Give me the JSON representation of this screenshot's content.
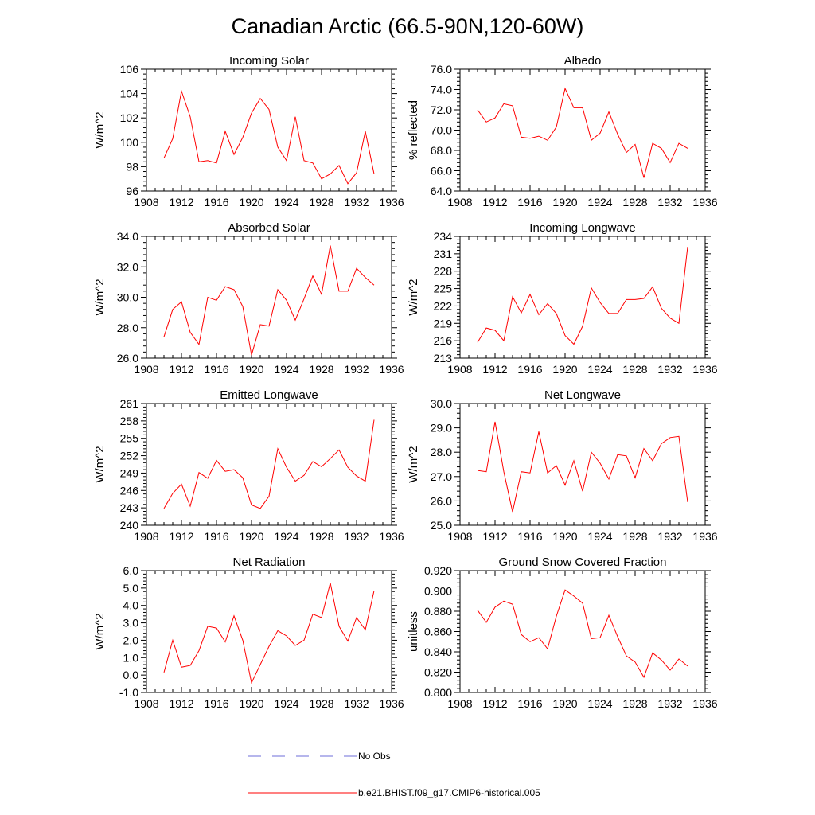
{
  "title": "Canadian Arctic (66.5-90N,120-60W)",
  "legend": [
    {
      "label": "No Obs",
      "color": "#6d6dd8",
      "style": "dashed"
    },
    {
      "label": "b.e21.BHIST.f09_g17.CMIP6-historical.005",
      "color": "#ff0000",
      "style": "solid"
    }
  ],
  "chart_data": [
    {
      "type": "line",
      "title": "Incoming Solar",
      "ylabel": "W/m^2",
      "xlim": [
        1908,
        1936
      ],
      "xticks": [
        1908,
        1912,
        1916,
        1920,
        1924,
        1928,
        1932,
        1936
      ],
      "ylim": [
        96,
        106
      ],
      "yticks": [
        96,
        98,
        100,
        102,
        104,
        106
      ],
      "ytick_labels": [
        "96",
        "98",
        "100",
        "102",
        "104",
        "106"
      ],
      "series": [
        {
          "name": "b.e21.BHIST.f09_g17.CMIP6-historical.005",
          "color": "#ff0000",
          "x": [
            1910,
            1911,
            1912,
            1913,
            1914,
            1915,
            1916,
            1917,
            1918,
            1919,
            1920,
            1921,
            1922,
            1923,
            1924,
            1925,
            1926,
            1927,
            1928,
            1929,
            1930,
            1931,
            1932,
            1933,
            1934
          ],
          "values": [
            98.7,
            100.3,
            104.2,
            102.1,
            98.4,
            98.5,
            98.3,
            100.9,
            99.0,
            100.4,
            102.4,
            103.6,
            102.7,
            99.6,
            98.5,
            102.1,
            98.5,
            98.3,
            97.0,
            97.4,
            98.1,
            96.6,
            97.5,
            100.9,
            97.4
          ]
        }
      ]
    },
    {
      "type": "line",
      "title": "Albedo",
      "ylabel": "% reflected",
      "xlim": [
        1908,
        1936
      ],
      "xticks": [
        1908,
        1912,
        1916,
        1920,
        1924,
        1928,
        1932,
        1936
      ],
      "ylim": [
        64,
        76
      ],
      "yticks": [
        64,
        66,
        68,
        70,
        72,
        74,
        76
      ],
      "ytick_labels": [
        "64.0",
        "66.0",
        "68.0",
        "70.0",
        "72.0",
        "74.0",
        "76.0"
      ],
      "series": [
        {
          "name": "b.e21.BHIST.f09_g17.CMIP6-historical.005",
          "color": "#ff0000",
          "x": [
            1910,
            1911,
            1912,
            1913,
            1914,
            1915,
            1916,
            1917,
            1918,
            1919,
            1920,
            1921,
            1922,
            1923,
            1924,
            1925,
            1926,
            1927,
            1928,
            1929,
            1930,
            1931,
            1932,
            1933,
            1934
          ],
          "values": [
            72.0,
            70.8,
            71.2,
            72.6,
            72.4,
            69.3,
            69.2,
            69.4,
            69.0,
            70.3,
            74.1,
            72.2,
            72.2,
            69.0,
            69.7,
            71.8,
            69.6,
            67.8,
            68.6,
            65.3,
            68.7,
            68.2,
            66.8,
            68.7,
            68.2
          ]
        }
      ]
    },
    {
      "type": "line",
      "title": "Absorbed Solar",
      "ylabel": "W/m^2",
      "xlim": [
        1908,
        1936
      ],
      "xticks": [
        1908,
        1912,
        1916,
        1920,
        1924,
        1928,
        1932,
        1936
      ],
      "ylim": [
        26,
        34
      ],
      "yticks": [
        26,
        28,
        30,
        32,
        34
      ],
      "ytick_labels": [
        "26.0",
        "28.0",
        "30.0",
        "32.0",
        "34.0"
      ],
      "series": [
        {
          "name": "b.e21.BHIST.f09_g17.CMIP6-historical.005",
          "color": "#ff0000",
          "x": [
            1910,
            1911,
            1912,
            1913,
            1914,
            1915,
            1916,
            1917,
            1918,
            1919,
            1920,
            1921,
            1922,
            1923,
            1924,
            1925,
            1926,
            1927,
            1928,
            1929,
            1930,
            1931,
            1932,
            1933,
            1934
          ],
          "values": [
            27.4,
            29.2,
            29.7,
            27.7,
            26.9,
            30.0,
            29.8,
            30.7,
            30.5,
            29.4,
            26.2,
            28.2,
            28.1,
            30.5,
            29.8,
            28.5,
            29.9,
            31.4,
            30.2,
            33.4,
            30.4,
            30.4,
            31.9,
            31.3,
            30.8
          ]
        }
      ]
    },
    {
      "type": "line",
      "title": "Incoming Longwave",
      "ylabel": "W/m^2",
      "xlim": [
        1908,
        1936
      ],
      "xticks": [
        1908,
        1912,
        1916,
        1920,
        1924,
        1928,
        1932,
        1936
      ],
      "ylim": [
        213,
        234
      ],
      "yticks": [
        213,
        216,
        219,
        222,
        225,
        228,
        231,
        234
      ],
      "ytick_labels": [
        "213",
        "216",
        "219",
        "222",
        "225",
        "228",
        "231",
        "234"
      ],
      "series": [
        {
          "name": "b.e21.BHIST.f09_g17.CMIP6-historical.005",
          "color": "#ff0000",
          "x": [
            1910,
            1911,
            1912,
            1913,
            1914,
            1915,
            1916,
            1917,
            1918,
            1919,
            1920,
            1921,
            1922,
            1923,
            1924,
            1925,
            1926,
            1927,
            1928,
            1929,
            1930,
            1931,
            1932,
            1933,
            1934
          ],
          "values": [
            215.7,
            218.2,
            217.8,
            216.0,
            223.6,
            220.8,
            224.0,
            220.5,
            222.4,
            220.7,
            216.9,
            215.4,
            218.5,
            225.1,
            222.6,
            220.7,
            220.7,
            223.1,
            223.1,
            223.3,
            225.3,
            221.6,
            219.9,
            219.0,
            232.2
          ]
        }
      ]
    },
    {
      "type": "line",
      "title": "Emitted Longwave",
      "ylabel": "W/m^2",
      "xlim": [
        1908,
        1936
      ],
      "xticks": [
        1908,
        1912,
        1916,
        1920,
        1924,
        1928,
        1932,
        1936
      ],
      "ylim": [
        240,
        261
      ],
      "yticks": [
        240,
        243,
        246,
        249,
        252,
        255,
        258,
        261
      ],
      "ytick_labels": [
        "240",
        "243",
        "246",
        "249",
        "252",
        "255",
        "258",
        "261"
      ],
      "series": [
        {
          "name": "b.e21.BHIST.f09_g17.CMIP6-historical.005",
          "color": "#ff0000",
          "x": [
            1910,
            1911,
            1912,
            1913,
            1914,
            1915,
            1916,
            1917,
            1918,
            1919,
            1920,
            1921,
            1922,
            1923,
            1924,
            1925,
            1926,
            1927,
            1928,
            1929,
            1930,
            1931,
            1932,
            1933,
            1934
          ],
          "values": [
            242.9,
            245.5,
            247.1,
            243.3,
            249.1,
            248.1,
            251.2,
            249.3,
            249.6,
            248.2,
            243.5,
            242.9,
            245.0,
            253.2,
            250.0,
            247.6,
            248.6,
            251.0,
            250.1,
            251.5,
            253.0,
            250.0,
            248.5,
            247.6,
            258.2
          ]
        }
      ]
    },
    {
      "type": "line",
      "title": "Net Longwave",
      "ylabel": "W/m^2",
      "xlim": [
        1908,
        1936
      ],
      "xticks": [
        1908,
        1912,
        1916,
        1920,
        1924,
        1928,
        1932,
        1936
      ],
      "ylim": [
        25,
        30
      ],
      "yticks": [
        25,
        26,
        27,
        28,
        29,
        30
      ],
      "ytick_labels": [
        "25.0",
        "26.0",
        "27.0",
        "28.0",
        "29.0",
        "30.0"
      ],
      "series": [
        {
          "name": "b.e21.BHIST.f09_g17.CMIP6-historical.005",
          "color": "#ff0000",
          "x": [
            1910,
            1911,
            1912,
            1913,
            1914,
            1915,
            1916,
            1917,
            1918,
            1919,
            1920,
            1921,
            1922,
            1923,
            1924,
            1925,
            1926,
            1927,
            1928,
            1929,
            1930,
            1931,
            1932,
            1933,
            1934
          ],
          "values": [
            27.25,
            27.2,
            29.25,
            27.2,
            25.55,
            27.2,
            27.15,
            28.85,
            27.15,
            27.45,
            26.65,
            27.65,
            26.4,
            28.0,
            27.55,
            26.9,
            27.9,
            27.85,
            26.95,
            28.15,
            27.65,
            28.35,
            28.6,
            28.65,
            25.95
          ]
        }
      ]
    },
    {
      "type": "line",
      "title": "Net Radiation",
      "ylabel": "W/m^2",
      "xlim": [
        1908,
        1936
      ],
      "xticks": [
        1908,
        1912,
        1916,
        1920,
        1924,
        1928,
        1932,
        1936
      ],
      "ylim": [
        -1,
        6
      ],
      "yticks": [
        -1,
        0,
        1,
        2,
        3,
        4,
        5,
        6
      ],
      "ytick_labels": [
        "-1.0",
        "0.0",
        "1.0",
        "2.0",
        "3.0",
        "4.0",
        "5.0",
        "6.0"
      ],
      "series": [
        {
          "name": "b.e21.BHIST.f09_g17.CMIP6-historical.005",
          "color": "#ff0000",
          "x": [
            1910,
            1911,
            1912,
            1913,
            1914,
            1915,
            1916,
            1917,
            1918,
            1919,
            1920,
            1921,
            1922,
            1923,
            1924,
            1925,
            1926,
            1927,
            1928,
            1929,
            1930,
            1931,
            1932,
            1933,
            1934
          ],
          "values": [
            0.15,
            2.0,
            0.45,
            0.55,
            1.4,
            2.8,
            2.7,
            1.9,
            3.4,
            2.0,
            -0.45,
            0.6,
            1.65,
            2.55,
            2.25,
            1.7,
            2.0,
            3.5,
            3.3,
            5.3,
            2.8,
            1.95,
            3.3,
            2.6,
            4.85
          ]
        }
      ]
    },
    {
      "type": "line",
      "title": "Ground Snow Covered Fraction",
      "ylabel": "unitless",
      "xlim": [
        1908,
        1936
      ],
      "xticks": [
        1908,
        1912,
        1916,
        1920,
        1924,
        1928,
        1932,
        1936
      ],
      "ylim": [
        0.8,
        0.92
      ],
      "yticks": [
        0.8,
        0.82,
        0.84,
        0.86,
        0.88,
        0.9,
        0.92
      ],
      "ytick_labels": [
        "0.800",
        "0.820",
        "0.840",
        "0.860",
        "0.880",
        "0.900",
        "0.920"
      ],
      "series": [
        {
          "name": "b.e21.BHIST.f09_g17.CMIP6-historical.005",
          "color": "#ff0000",
          "x": [
            1910,
            1911,
            1912,
            1913,
            1914,
            1915,
            1916,
            1917,
            1918,
            1919,
            1920,
            1921,
            1922,
            1923,
            1924,
            1925,
            1926,
            1927,
            1928,
            1929,
            1930,
            1931,
            1932,
            1933,
            1934
          ],
          "values": [
            0.881,
            0.869,
            0.884,
            0.89,
            0.887,
            0.857,
            0.85,
            0.854,
            0.843,
            0.875,
            0.901,
            0.895,
            0.888,
            0.853,
            0.854,
            0.876,
            0.855,
            0.836,
            0.83,
            0.815,
            0.839,
            0.832,
            0.822,
            0.833,
            0.826
          ]
        }
      ]
    }
  ]
}
